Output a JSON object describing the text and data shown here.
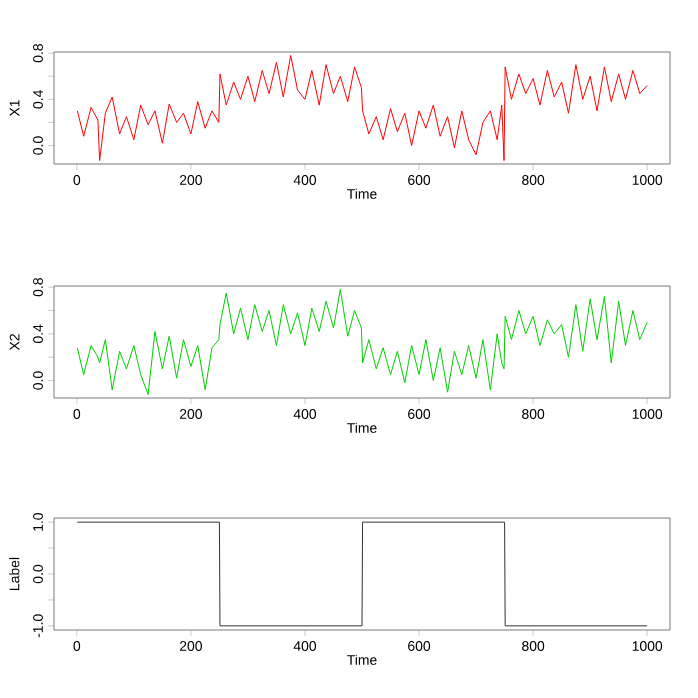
{
  "chart_data": [
    {
      "type": "line",
      "xlabel": "Time",
      "ylabel": "X1",
      "xlim": [
        -40,
        1040
      ],
      "ylim": [
        -0.16,
        0.81
      ],
      "xticks": [
        0,
        200,
        400,
        600,
        800,
        1000
      ],
      "yticks": [
        {
          "value": 0,
          "label": "0.0"
        },
        {
          "value": 0.2,
          "label": null
        },
        {
          "value": 0.4,
          "label": "0.4"
        },
        {
          "value": 0.6,
          "label": null
        },
        {
          "value": 0.8,
          "label": "0.8"
        }
      ],
      "x": [
        1,
        12,
        25,
        37,
        40,
        50,
        62,
        75,
        87,
        100,
        112,
        125,
        137,
        150,
        162,
        175,
        187,
        200,
        212,
        225,
        237,
        249,
        251,
        262,
        275,
        287,
        300,
        312,
        325,
        337,
        350,
        362,
        375,
        387,
        400,
        412,
        425,
        437,
        450,
        462,
        475,
        487,
        499,
        501,
        512,
        525,
        537,
        550,
        562,
        575,
        587,
        600,
        612,
        625,
        637,
        650,
        662,
        675,
        687,
        700,
        712,
        725,
        737,
        745,
        749,
        751,
        762,
        775,
        787,
        800,
        812,
        825,
        837,
        850,
        862,
        875,
        887,
        900,
        912,
        925,
        937,
        950,
        962,
        975,
        987,
        1000
      ],
      "series": [
        {
          "color": "#ff0000",
          "values": [
            0.3,
            0.08,
            0.33,
            0.22,
            -0.13,
            0.28,
            0.42,
            0.1,
            0.25,
            0.05,
            0.35,
            0.18,
            0.3,
            0.02,
            0.36,
            0.2,
            0.28,
            0.1,
            0.38,
            0.15,
            0.3,
            0.2,
            0.62,
            0.35,
            0.55,
            0.4,
            0.6,
            0.38,
            0.65,
            0.45,
            0.72,
            0.42,
            0.78,
            0.48,
            0.4,
            0.65,
            0.35,
            0.7,
            0.45,
            0.6,
            0.38,
            0.68,
            0.5,
            0.3,
            0.1,
            0.25,
            0.05,
            0.32,
            0.12,
            0.28,
            0.0,
            0.3,
            0.15,
            0.35,
            0.08,
            0.25,
            -0.02,
            0.3,
            0.05,
            -0.08,
            0.2,
            0.3,
            0.05,
            0.35,
            -0.13,
            0.68,
            0.4,
            0.62,
            0.45,
            0.58,
            0.35,
            0.65,
            0.42,
            0.55,
            0.28,
            0.7,
            0.4,
            0.6,
            0.3,
            0.68,
            0.38,
            0.62,
            0.4,
            0.65,
            0.45,
            0.52
          ]
        }
      ]
    },
    {
      "type": "line",
      "xlabel": "Time",
      "ylabel": "X2",
      "xlim": [
        -40,
        1040
      ],
      "ylim": [
        -0.15,
        0.81
      ],
      "xticks": [
        0,
        200,
        400,
        600,
        800,
        1000
      ],
      "yticks": [
        {
          "value": 0,
          "label": "0.0"
        },
        {
          "value": 0.2,
          "label": null
        },
        {
          "value": 0.4,
          "label": "0.4"
        },
        {
          "value": 0.6,
          "label": null
        },
        {
          "value": 0.8,
          "label": "0.8"
        }
      ],
      "x": [
        1,
        12,
        25,
        37,
        40,
        50,
        62,
        75,
        87,
        100,
        112,
        125,
        137,
        150,
        162,
        175,
        187,
        200,
        212,
        225,
        237,
        249,
        251,
        262,
        275,
        287,
        300,
        312,
        325,
        337,
        350,
        362,
        375,
        387,
        400,
        412,
        425,
        437,
        450,
        462,
        475,
        487,
        499,
        501,
        512,
        525,
        537,
        550,
        562,
        575,
        587,
        600,
        612,
        625,
        637,
        650,
        662,
        675,
        687,
        700,
        712,
        725,
        737,
        745,
        749,
        751,
        762,
        775,
        787,
        800,
        812,
        825,
        837,
        850,
        862,
        875,
        887,
        900,
        912,
        925,
        937,
        950,
        962,
        975,
        987,
        1000
      ],
      "series": [
        {
          "color": "#00cd00",
          "values": [
            0.28,
            0.05,
            0.3,
            0.2,
            0.15,
            0.35,
            -0.08,
            0.25,
            0.1,
            0.3,
            0.05,
            -0.12,
            0.42,
            0.1,
            0.38,
            0.02,
            0.35,
            0.12,
            0.3,
            -0.08,
            0.28,
            0.35,
            0.48,
            0.75,
            0.4,
            0.62,
            0.35,
            0.65,
            0.42,
            0.6,
            0.3,
            0.65,
            0.4,
            0.58,
            0.3,
            0.62,
            0.42,
            0.68,
            0.45,
            0.78,
            0.38,
            0.6,
            0.45,
            0.15,
            0.35,
            0.1,
            0.28,
            0.05,
            0.25,
            -0.02,
            0.3,
            0.05,
            0.35,
            0.0,
            0.28,
            -0.1,
            0.25,
            0.05,
            0.3,
            0.02,
            0.35,
            -0.08,
            0.4,
            0.15,
            0.1,
            0.55,
            0.35,
            0.6,
            0.4,
            0.55,
            0.3,
            0.52,
            0.4,
            0.48,
            0.2,
            0.65,
            0.25,
            0.7,
            0.35,
            0.72,
            0.15,
            0.68,
            0.3,
            0.6,
            0.35,
            0.5
          ]
        }
      ]
    },
    {
      "type": "line",
      "xlabel": "Time",
      "ylabel": "Label",
      "xlim": [
        -40,
        1040
      ],
      "ylim": [
        -1.08,
        1.08
      ],
      "xticks": [
        0,
        200,
        400,
        600,
        800,
        1000
      ],
      "yticks": [
        {
          "value": -1,
          "label": "-1.0"
        },
        {
          "value": -0.5,
          "label": null
        },
        {
          "value": 0,
          "label": "0.0"
        },
        {
          "value": 0.5,
          "label": null
        },
        {
          "value": 1,
          "label": "1.0"
        }
      ],
      "x": [
        1,
        250,
        251,
        500,
        501,
        750,
        751,
        1000
      ],
      "series": [
        {
          "color": "#333333",
          "values": [
            1,
            1,
            -1,
            -1,
            1,
            1,
            -1,
            -1
          ]
        }
      ]
    }
  ]
}
